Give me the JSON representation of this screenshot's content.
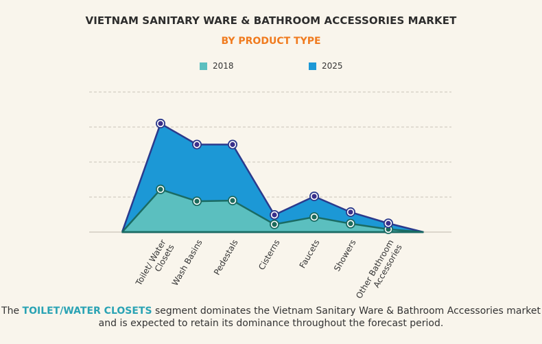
{
  "title": "VIETNAM SANITARY WARE & BATHROOM ACCESSORIES MARKET",
  "subtitle": "BY PRODUCT TYPE",
  "footer": {
    "pre": "The ",
    "highlight": "TOILET/WATER CLOSETS",
    "post": " segment dominates the Vietnam Sanitary Ware & Bathroom Accessories market and is expected to retain its dominance throughout the forecast period."
  },
  "chart_data": {
    "type": "area",
    "title": "VIETNAM SANITARY WARE & BATHROOM ACCESSORIES MARKET",
    "subtitle": "BY PRODUCT TYPE",
    "categories": [
      "Toilet/ Water Closets",
      "Wash Basins",
      "Pedestals",
      "Cisterns",
      "Faucets",
      "Showers",
      "Other Bathroom Accessories"
    ],
    "series": [
      {
        "name": "2018",
        "values": [
          1.22,
          0.88,
          0.9,
          0.22,
          0.43,
          0.24,
          0.08
        ],
        "color": "#5bbfbf",
        "line": "#1a6b63",
        "marker": "#1d6b5c"
      },
      {
        "name": "2025",
        "values": [
          3.1,
          2.5,
          2.5,
          0.49,
          1.02,
          0.57,
          0.25
        ],
        "color": "#1c98d6",
        "line": "#2b3a8c",
        "marker": "#3a2f8a"
      }
    ],
    "ylim": [
      0,
      4
    ],
    "y_tick_labels_shown": false,
    "grid": true,
    "legend": "top"
  }
}
